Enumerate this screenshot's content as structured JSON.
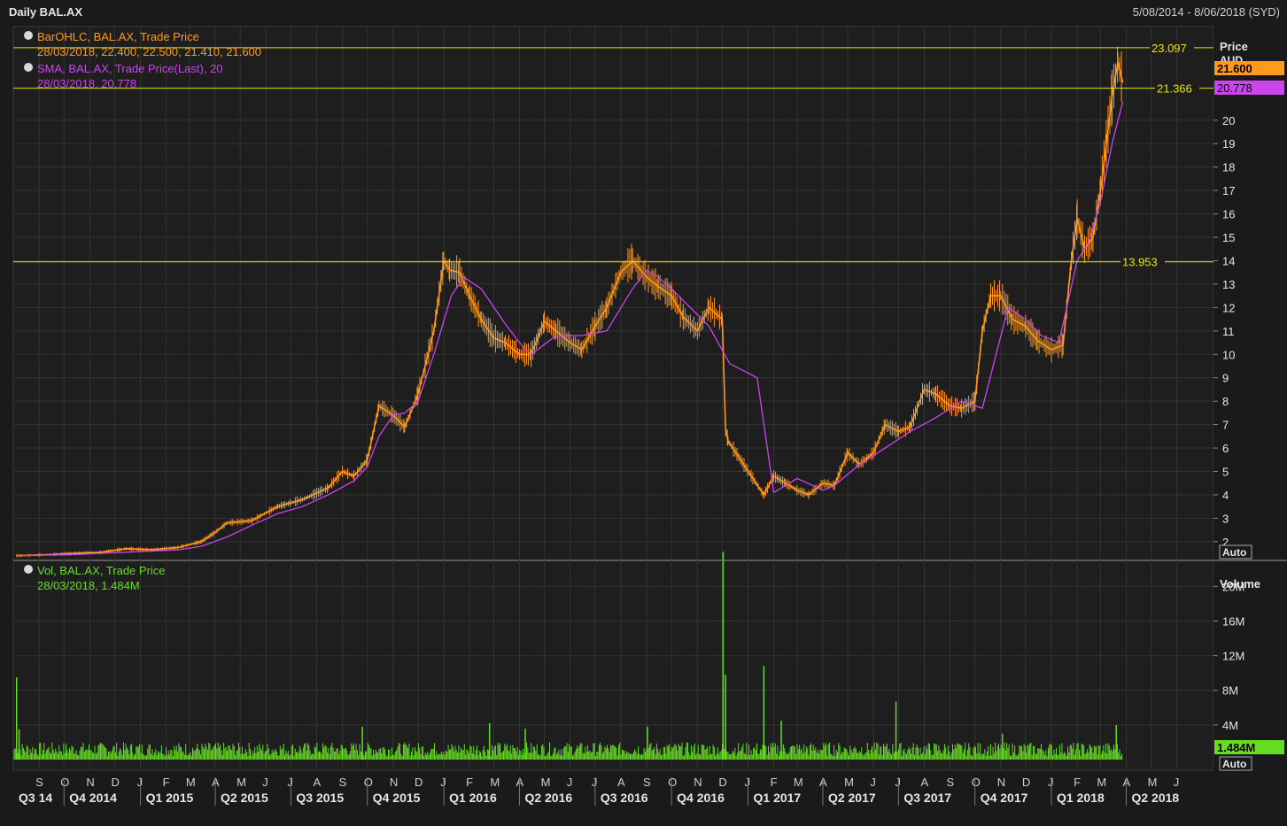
{
  "header": {
    "title": "Daily BAL.AX",
    "date_range": "5/08/2014 - 8/06/2018 (SYD)"
  },
  "price_panel": {
    "axis_title": "Price",
    "axis_unit": "AUD",
    "auto_label": "Auto",
    "ohlc_legend": "BarOHLC, BAL.AX, Trade Price",
    "ohlc_values": "28/03/2018, 22.400, 22.500, 21.410, 21.600",
    "sma_legend": "SMA, BAL.AX, Trade Price(Last),  20",
    "sma_values": "28/03/2018, 20.778",
    "last_price_badge": "21.600",
    "sma_badge": "20.778",
    "hlines": [
      {
        "value": 23.097,
        "label": "23.097"
      },
      {
        "value": 21.366,
        "label": "21.366"
      },
      {
        "value": 13.953,
        "label": "13.953"
      }
    ]
  },
  "volume_panel": {
    "axis_title": "Volume",
    "auto_label": "Auto",
    "legend": "Vol, BAL.AX, Trade Price",
    "values": "28/03/2018, 1.484M",
    "last_volume_badge": "1.484M",
    "ticks": [
      "4M",
      "8M",
      "12M",
      "16M",
      "20M"
    ]
  },
  "colors": {
    "background": "#1a1a1a",
    "grid": "#333333",
    "price": "#ff9a1f",
    "sma": "#cc44ee",
    "volume": "#66dd22",
    "hline": "#e8e800"
  },
  "chart_data": {
    "type": "line",
    "ylim_price": [
      1.2,
      24.0
    ],
    "ylim_volume": [
      0,
      23
    ],
    "price_ticks": [
      "2",
      "3",
      "4",
      "5",
      "6",
      "7",
      "8",
      "9",
      "10",
      "11",
      "12",
      "13",
      "14",
      "15",
      "16",
      "17",
      "18",
      "19",
      "20"
    ],
    "month_labels": [
      "S",
      "O",
      "N",
      "D",
      "J",
      "F",
      "M",
      "A",
      "M",
      "J",
      "J",
      "A",
      "S",
      "O",
      "N",
      "D",
      "J",
      "F",
      "M",
      "A",
      "M",
      "J",
      "J",
      "A",
      "S",
      "O",
      "N",
      "D",
      "J",
      "F",
      "M",
      "A",
      "M",
      "J",
      "J",
      "A",
      "S",
      "O",
      "N",
      "D",
      "J",
      "F",
      "M",
      "A",
      "M",
      "J"
    ],
    "quarter_labels": [
      "Q3 14",
      "Q4 2014",
      "Q1 2015",
      "Q2 2015",
      "Q3 2015",
      "Q4 2015",
      "Q1 2016",
      "Q2 2016",
      "Q3 2016",
      "Q4 2016",
      "Q1 2017",
      "Q2 2017",
      "Q3 2017",
      "Q4 2017",
      "Q1 2018",
      "Q2 2018"
    ],
    "price_series": {
      "name": "BarOHLC, BAL.AX, Trade Price",
      "x": [
        "2014-08-05",
        "2014-09-15",
        "2014-10-15",
        "2014-11-15",
        "2014-12-15",
        "2015-01-15",
        "2015-02-15",
        "2015-03-15",
        "2015-04-01",
        "2015-04-15",
        "2015-05-15",
        "2015-06-15",
        "2015-07-15",
        "2015-08-15",
        "2015-09-01",
        "2015-09-15",
        "2015-10-01",
        "2015-10-15",
        "2015-11-01",
        "2015-11-15",
        "2015-12-01",
        "2015-12-20",
        "2016-01-01",
        "2016-01-08",
        "2016-01-20",
        "2016-02-01",
        "2016-02-15",
        "2016-03-01",
        "2016-03-15",
        "2016-04-01",
        "2016-04-15",
        "2016-05-01",
        "2016-05-15",
        "2016-06-01",
        "2016-06-15",
        "2016-07-01",
        "2016-07-15",
        "2016-08-01",
        "2016-08-15",
        "2016-09-01",
        "2016-09-15",
        "2016-10-01",
        "2016-10-15",
        "2016-11-01",
        "2016-11-15",
        "2016-12-01",
        "2016-12-05",
        "2016-12-08",
        "2017-01-20",
        "2017-02-01",
        "2017-02-15",
        "2017-03-01",
        "2017-03-15",
        "2017-04-01",
        "2017-04-15",
        "2017-05-01",
        "2017-05-15",
        "2017-06-01",
        "2017-06-15",
        "2017-07-01",
        "2017-07-15",
        "2017-08-01",
        "2017-08-15",
        "2017-09-01",
        "2017-09-15",
        "2017-10-01",
        "2017-10-10",
        "2017-10-20",
        "2017-11-01",
        "2017-11-15",
        "2017-12-01",
        "2017-12-15",
        "2018-01-01",
        "2018-01-15",
        "2018-01-25",
        "2018-02-01",
        "2018-02-10",
        "2018-02-20",
        "2018-03-01",
        "2018-03-08",
        "2018-03-15",
        "2018-03-22",
        "2018-03-28"
      ],
      "y": [
        1.4,
        1.45,
        1.5,
        1.55,
        1.7,
        1.65,
        1.75,
        2.0,
        2.4,
        2.8,
        2.9,
        3.5,
        3.8,
        4.3,
        5.0,
        4.8,
        5.5,
        7.8,
        7.4,
        6.9,
        8.3,
        11.0,
        14.0,
        13.6,
        13.5,
        12.5,
        11.5,
        10.7,
        10.5,
        10.0,
        10.0,
        11.4,
        11.0,
        10.5,
        10.2,
        11.2,
        12.0,
        13.5,
        14.0,
        13.3,
        12.9,
        12.5,
        11.6,
        11.0,
        12.0,
        11.5,
        6.8,
        6.3,
        4.0,
        4.8,
        4.5,
        4.2,
        4.0,
        4.5,
        4.4,
        5.8,
        5.3,
        5.8,
        7.0,
        6.7,
        6.9,
        8.5,
        8.3,
        7.8,
        7.7,
        8.0,
        11.0,
        12.5,
        12.5,
        11.5,
        11.2,
        10.6,
        10.2,
        10.4,
        14.0,
        15.8,
        14.5,
        15.0,
        17.0,
        19.0,
        21.0,
        22.5,
        21.6
      ]
    },
    "sma_series": {
      "name": "SMA, BAL.AX, Trade Price(Last),  20",
      "x": [
        "2014-08-05",
        "2014-10-15",
        "2014-12-15",
        "2015-02-15",
        "2015-03-15",
        "2015-04-15",
        "2015-05-15",
        "2015-06-15",
        "2015-07-15",
        "2015-08-15",
        "2015-09-15",
        "2015-10-01",
        "2015-10-15",
        "2015-11-01",
        "2015-11-15",
        "2015-12-01",
        "2015-12-20",
        "2016-01-10",
        "2016-01-25",
        "2016-02-15",
        "2016-03-15",
        "2016-04-01",
        "2016-04-15",
        "2016-05-15",
        "2016-06-15",
        "2016-07-15",
        "2016-08-15",
        "2016-09-01",
        "2016-09-15",
        "2016-10-01",
        "2016-10-15",
        "2016-11-01",
        "2016-11-15",
        "2016-12-10",
        "2017-01-12",
        "2017-02-01",
        "2017-03-01",
        "2017-04-01",
        "2017-04-15",
        "2017-05-15",
        "2017-06-15",
        "2017-07-15",
        "2017-08-15",
        "2017-09-15",
        "2017-10-10",
        "2017-10-25",
        "2017-11-10",
        "2017-12-01",
        "2017-12-20",
        "2018-01-10",
        "2018-02-01",
        "2018-02-15",
        "2018-03-01",
        "2018-03-15",
        "2018-03-28"
      ],
      "y": [
        1.4,
        1.45,
        1.55,
        1.65,
        1.8,
        2.2,
        2.7,
        3.2,
        3.5,
        4.0,
        4.6,
        5.2,
        6.5,
        7.4,
        7.5,
        8.0,
        10.0,
        12.5,
        13.3,
        12.8,
        11.3,
        10.5,
        10.0,
        10.8,
        10.8,
        11.0,
        12.8,
        13.6,
        13.3,
        12.8,
        12.3,
        11.7,
        11.2,
        9.6,
        9.0,
        4.1,
        4.7,
        4.2,
        4.4,
        5.3,
        6.0,
        6.7,
        7.3,
        8.0,
        7.7,
        9.8,
        12.0,
        11.5,
        10.8,
        10.5,
        14.0,
        14.8,
        16.5,
        19.0,
        20.8
      ]
    },
    "volume_series": {
      "name": "Vol, BAL.AX, Trade Price",
      "spikes_x": [
        "2014-08-05",
        "2014-08-08",
        "2015-09-25",
        "2016-02-25",
        "2016-04-08",
        "2016-09-02",
        "2016-12-02",
        "2016-12-05",
        "2017-01-20",
        "2017-02-10",
        "2017-06-28",
        "2017-11-03",
        "2018-03-20"
      ],
      "spikes_y": [
        9.5,
        3.5,
        3.8,
        4.2,
        3.6,
        3.8,
        24.0,
        9.8,
        10.8,
        4.5,
        6.7,
        3.0,
        4.0
      ],
      "last": 1.484
    }
  }
}
